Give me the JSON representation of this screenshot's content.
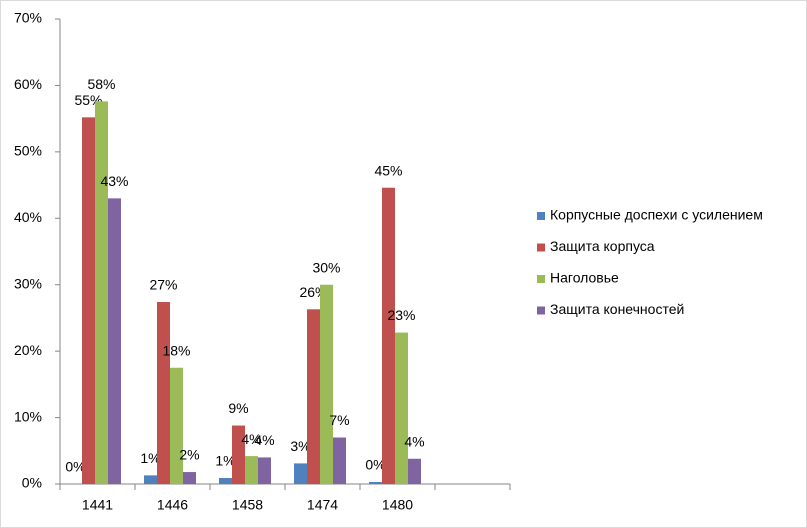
{
  "chart_data": {
    "type": "bar",
    "categories": [
      "1441",
      "1446",
      "1458",
      "1474",
      "1480",
      null
    ],
    "series": [
      {
        "name": "Корпусные доспехи с усилением",
        "color": "#4f81bd",
        "values": [
          0,
          1.3,
          0.9,
          3.1,
          0.3,
          null
        ],
        "value_labels": [
          "0%",
          "1%",
          "1%",
          "3%",
          "0%",
          null
        ]
      },
      {
        "name": "Защита корпуса",
        "color": "#c0504d",
        "values": [
          55.2,
          27.4,
          8.8,
          26.3,
          44.6,
          null
        ],
        "value_labels": [
          "55%",
          "27%",
          "9%",
          "26%",
          "45%",
          null
        ]
      },
      {
        "name": "Наголовье",
        "color": "#9bbb59",
        "values": [
          57.6,
          17.5,
          4.2,
          30,
          22.8,
          null
        ],
        "value_labels": [
          "58%",
          "18%",
          "4%",
          "30%",
          "23%",
          null
        ]
      },
      {
        "name": "Защита конечностей",
        "color": "#8064a2",
        "values": [
          43,
          1.8,
          4.0,
          7,
          3.8,
          null
        ],
        "value_labels": [
          "43%",
          "2%",
          "4%",
          "7%",
          "4%",
          null
        ]
      }
    ],
    "ylim": [
      0,
      70
    ],
    "yticks": [
      {
        "value": 0,
        "label": "0%"
      },
      {
        "value": 10,
        "label": "10%"
      },
      {
        "value": 20,
        "label": "20%"
      },
      {
        "value": 30,
        "label": "30%"
      },
      {
        "value": 40,
        "label": "40%"
      },
      {
        "value": 50,
        "label": "50%"
      },
      {
        "value": 60,
        "label": "60%"
      },
      {
        "value": 70,
        "label": "70%"
      }
    ],
    "legend": "right"
  }
}
